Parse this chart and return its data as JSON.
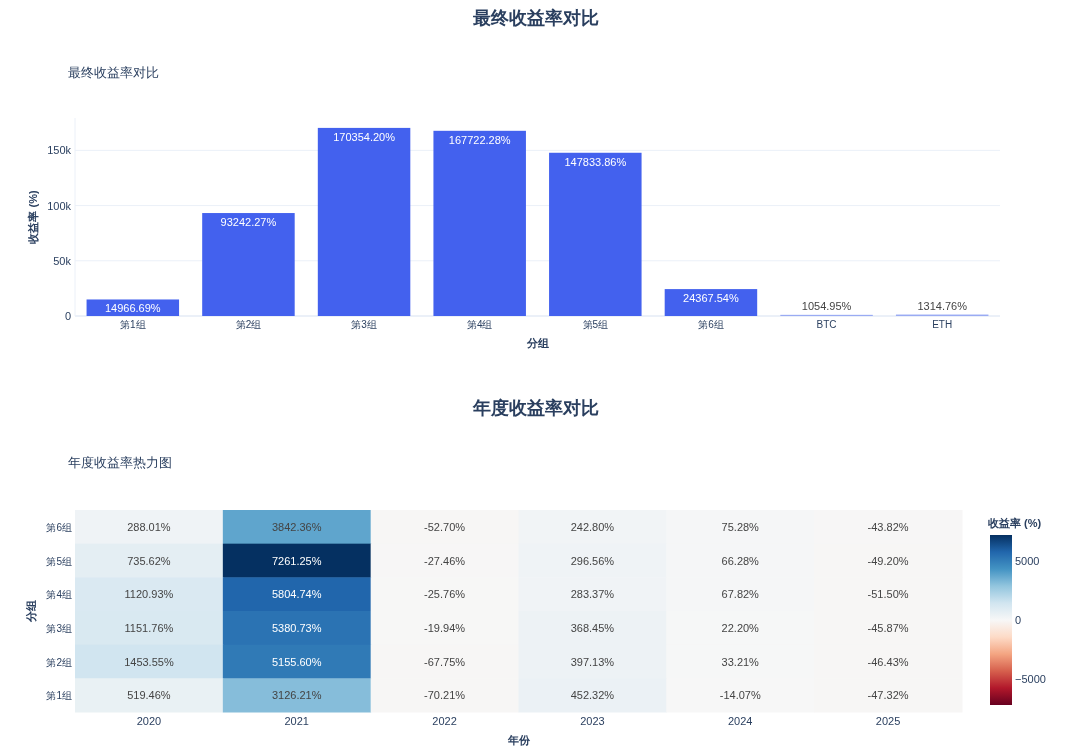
{
  "chart_data": [
    {
      "type": "bar",
      "title": "最终收益率对比",
      "subtitle": "最终收益率对比",
      "xlabel": "分组",
      "ylabel": "收益率 (%)",
      "categories": [
        "第1组",
        "第2组",
        "第3组",
        "第4组",
        "第5组",
        "第6组",
        "BTC",
        "ETH"
      ],
      "values": [
        14966.69,
        93242.27,
        170354.2,
        167722.28,
        147833.86,
        24367.54,
        1054.95,
        1314.76
      ],
      "colors": [
        "#4361ee",
        "#4361ee",
        "#4361ee",
        "#4361ee",
        "#4361ee",
        "#4361ee",
        "#9aabf3",
        "#9aabf3"
      ],
      "value_labels": [
        "14966.69%",
        "93242.27%",
        "170354.20%",
        "167722.28%",
        "147833.86%",
        "24367.54%",
        "1054.95%",
        "1314.76%"
      ],
      "ylim": [
        0,
        179320
      ],
      "yticks": [
        0,
        {
          "value": 50000,
          "label": "50k"
        },
        {
          "value": 100000,
          "label": "100k"
        },
        {
          "value": 150000,
          "label": "150k"
        }
      ],
      "grid": "y"
    },
    {
      "type": "heatmap",
      "title": "年度收益率对比",
      "subtitle": "年度收益率热力图",
      "xlabel": "年份",
      "ylabel": "分组",
      "clabel": "收益率 (%)",
      "categories": [
        "2020",
        "2021",
        "2022",
        "2023",
        "2024",
        "2025"
      ],
      "y_categories": [
        "第6组",
        "第5组",
        "第4组",
        "第3组",
        "第2组",
        "第1组"
      ],
      "cells": [
        [
          288.01,
          3842.36,
          -52.7,
          242.8,
          75.28,
          -43.82
        ],
        [
          735.62,
          7261.25,
          -27.46,
          296.56,
          66.28,
          -49.2
        ],
        [
          1120.93,
          5804.74,
          -25.76,
          283.37,
          67.82,
          -51.5
        ],
        [
          1151.76,
          5380.73,
          -19.94,
          368.45,
          22.2,
          -45.87
        ],
        [
          1453.55,
          5155.6,
          -67.75,
          397.13,
          33.21,
          -46.43
        ],
        [
          519.46,
          3126.21,
          -70.21,
          452.32,
          -14.07,
          -47.32
        ]
      ],
      "cell_labels": [
        [
          "288.01%",
          "3842.36%",
          "-52.70%",
          "242.80%",
          "75.28%",
          "-43.82%"
        ],
        [
          "735.62%",
          "7261.25%",
          "-27.46%",
          "296.56%",
          "66.28%",
          "-49.20%"
        ],
        [
          "1120.93%",
          "5804.74%",
          "-25.76%",
          "283.37%",
          "67.82%",
          "-51.50%"
        ],
        [
          "1151.76%",
          "5380.73%",
          "-19.94%",
          "368.45%",
          "22.20%",
          "-45.87%"
        ],
        [
          "1453.55%",
          "5155.60%",
          "-67.75%",
          "397.13%",
          "33.21%",
          "-46.43%"
        ],
        [
          "519.46%",
          "3126.21%",
          "-70.21%",
          "452.32%",
          "-14.07%",
          "-47.32%"
        ]
      ],
      "clim": [
        -7261.25,
        7261.25
      ],
      "cticks": [
        {
          "value": 5000,
          "label": "5000"
        },
        {
          "value": 0,
          "label": "0"
        },
        {
          "value": -5000,
          "label": "−5000"
        }
      ]
    }
  ]
}
